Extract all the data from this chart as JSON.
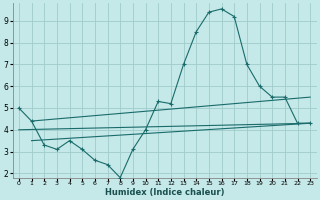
{
  "xlabel": "Humidex (Indice chaleur)",
  "ylabel": "",
  "xlim": [
    -0.5,
    23.5
  ],
  "ylim": [
    1.8,
    9.8
  ],
  "xticks": [
    0,
    1,
    2,
    3,
    4,
    5,
    6,
    7,
    8,
    9,
    10,
    11,
    12,
    13,
    14,
    15,
    16,
    17,
    18,
    19,
    20,
    21,
    22,
    23
  ],
  "yticks": [
    2,
    3,
    4,
    5,
    6,
    7,
    8,
    9
  ],
  "background_color": "#c5e8e8",
  "grid_color": "#a0cccc",
  "line_color": "#1a6b6b",
  "line1_x": [
    0,
    1,
    2,
    3,
    4,
    5,
    6,
    7,
    8,
    9,
    10,
    11,
    12,
    13,
    14,
    15,
    16,
    17,
    18,
    19,
    20,
    21,
    22,
    23
  ],
  "line1_y": [
    5.0,
    4.4,
    3.3,
    3.1,
    3.5,
    3.1,
    2.6,
    2.4,
    1.8,
    3.1,
    4.0,
    5.3,
    5.2,
    7.0,
    8.5,
    9.4,
    9.55,
    9.2,
    7.0,
    6.0,
    5.5,
    5.5,
    4.3,
    4.3
  ],
  "line2_x": [
    1,
    23
  ],
  "line2_y": [
    4.4,
    5.5
  ],
  "line3_x": [
    1,
    23
  ],
  "line3_y": [
    3.5,
    4.3
  ],
  "line4_x": [
    0,
    23
  ],
  "line4_y": [
    4.0,
    4.3
  ]
}
